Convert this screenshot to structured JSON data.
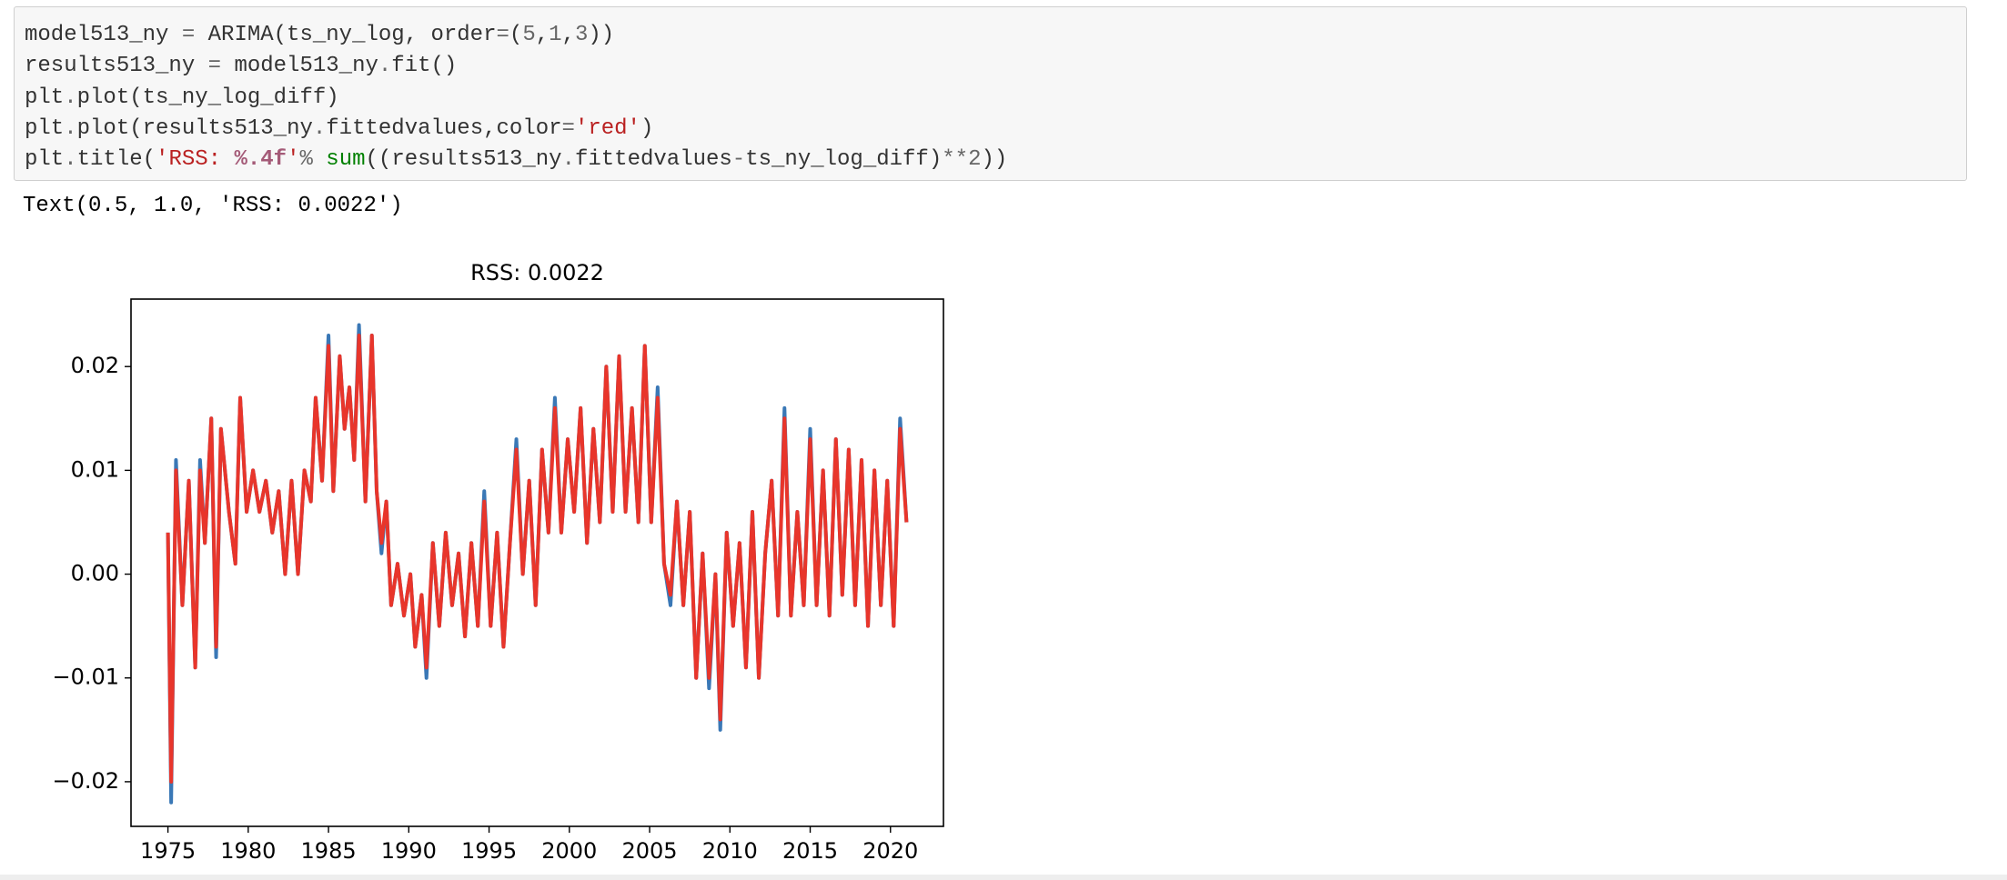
{
  "code": {
    "lines": [
      [
        {
          "text": "model513_ny ",
          "color": "#333333"
        },
        {
          "text": "=",
          "color": "#666666"
        },
        {
          "text": " ARIMA(ts_ny_log, order",
          "color": "#333333"
        },
        {
          "text": "=",
          "color": "#666666"
        },
        {
          "text": "(",
          "color": "#333333"
        },
        {
          "text": "5",
          "color": "#666666"
        },
        {
          "text": ",",
          "color": "#333333"
        },
        {
          "text": "1",
          "color": "#666666"
        },
        {
          "text": ",",
          "color": "#333333"
        },
        {
          "text": "3",
          "color": "#666666"
        },
        {
          "text": "))",
          "color": "#333333"
        }
      ],
      [
        {
          "text": "results513_ny ",
          "color": "#333333"
        },
        {
          "text": "=",
          "color": "#666666"
        },
        {
          "text": " model513_ny",
          "color": "#333333"
        },
        {
          "text": ".",
          "color": "#666666"
        },
        {
          "text": "fit()",
          "color": "#333333"
        }
      ],
      [
        {
          "text": "plt",
          "color": "#333333"
        },
        {
          "text": ".",
          "color": "#666666"
        },
        {
          "text": "plot(ts_ny_log_diff)",
          "color": "#333333"
        }
      ],
      [
        {
          "text": "plt",
          "color": "#333333"
        },
        {
          "text": ".",
          "color": "#666666"
        },
        {
          "text": "plot(results513_ny",
          "color": "#333333"
        },
        {
          "text": ".",
          "color": "#666666"
        },
        {
          "text": "fittedvalues,color",
          "color": "#333333"
        },
        {
          "text": "=",
          "color": "#666666"
        },
        {
          "text": "'red'",
          "color": "#ba2121"
        },
        {
          "text": ")",
          "color": "#333333"
        }
      ],
      [
        {
          "text": "plt",
          "color": "#333333"
        },
        {
          "text": ".",
          "color": "#666666"
        },
        {
          "text": "title(",
          "color": "#333333"
        },
        {
          "text": "'RSS: ",
          "color": "#ba2121"
        },
        {
          "text": "%.4f",
          "color": "#a45a77",
          "weight": "bold"
        },
        {
          "text": "'",
          "color": "#ba2121"
        },
        {
          "text": "%",
          "color": "#666666"
        },
        {
          "text": " ",
          "color": "#333333"
        },
        {
          "text": "sum",
          "color": "#008000"
        },
        {
          "text": "((results513_ny",
          "color": "#333333"
        },
        {
          "text": ".",
          "color": "#666666"
        },
        {
          "text": "fittedvalues",
          "color": "#333333"
        },
        {
          "text": "-",
          "color": "#666666"
        },
        {
          "text": "ts_ny_log_diff)",
          "color": "#333333"
        },
        {
          "text": "**",
          "color": "#666666"
        },
        {
          "text": "2",
          "color": "#666666"
        },
        {
          "text": "))",
          "color": "#333333"
        }
      ]
    ]
  },
  "output": {
    "text": "Text(0.5, 1.0, 'RSS: 0.0022')"
  },
  "chart_data": {
    "type": "line",
    "title": "RSS: 0.0022",
    "x": [
      1975.0,
      1975.2,
      1975.5,
      1975.9,
      1976.3,
      1976.7,
      1977.0,
      1977.3,
      1977.7,
      1978.0,
      1978.3,
      1978.8,
      1979.2,
      1979.5,
      1979.9,
      1980.3,
      1980.7,
      1981.1,
      1981.5,
      1981.9,
      1982.3,
      1982.7,
      1983.1,
      1983.5,
      1983.9,
      1984.2,
      1984.6,
      1985.0,
      1985.3,
      1985.7,
      1986.0,
      1986.3,
      1986.6,
      1986.9,
      1987.3,
      1987.7,
      1988.0,
      1988.3,
      1988.6,
      1988.9,
      1989.3,
      1989.7,
      1990.1,
      1990.4,
      1990.8,
      1991.1,
      1991.5,
      1991.9,
      1992.3,
      1992.7,
      1993.1,
      1993.5,
      1993.9,
      1994.3,
      1994.7,
      1995.1,
      1995.5,
      1995.9,
      1996.3,
      1996.7,
      1997.1,
      1997.5,
      1997.9,
      1998.3,
      1998.7,
      1999.1,
      1999.5,
      1999.9,
      2000.3,
      2000.7,
      2001.1,
      2001.5,
      2001.9,
      2002.3,
      2002.7,
      2003.1,
      2003.5,
      2003.9,
      2004.3,
      2004.7,
      2005.1,
      2005.5,
      2005.9,
      2006.3,
      2006.7,
      2007.1,
      2007.5,
      2007.9,
      2008.3,
      2008.7,
      2009.1,
      2009.4,
      2009.8,
      2010.2,
      2010.6,
      2011.0,
      2011.4,
      2011.8,
      2012.2,
      2012.6,
      2013.0,
      2013.4,
      2013.8,
      2014.2,
      2014.6,
      2015.0,
      2015.4,
      2015.8,
      2016.2,
      2016.6,
      2017.0,
      2017.4,
      2017.8,
      2018.2,
      2018.6,
      2019.0,
      2019.4,
      2019.8,
      2020.2,
      2020.6,
      2021.0
    ],
    "series": [
      {
        "color": "#3a78b6",
        "values": [
          0.004,
          -0.022,
          0.011,
          -0.003,
          0.009,
          -0.009,
          0.011,
          0.003,
          0.015,
          -0.008,
          0.014,
          0.006,
          0.001,
          0.017,
          0.006,
          0.01,
          0.006,
          0.009,
          0.004,
          0.008,
          0.0,
          0.009,
          0.0,
          0.01,
          0.007,
          0.017,
          0.009,
          0.023,
          0.008,
          0.021,
          0.014,
          0.018,
          0.011,
          0.024,
          0.007,
          0.023,
          0.008,
          0.002,
          0.007,
          -0.003,
          0.001,
          -0.004,
          0.0,
          -0.007,
          -0.002,
          -0.01,
          0.003,
          -0.005,
          0.004,
          -0.003,
          0.002,
          -0.006,
          0.003,
          -0.005,
          0.008,
          -0.005,
          0.004,
          -0.007,
          0.003,
          0.013,
          0.0,
          0.009,
          -0.003,
          0.012,
          0.004,
          0.017,
          0.004,
          0.013,
          0.006,
          0.016,
          0.003,
          0.014,
          0.005,
          0.02,
          0.006,
          0.021,
          0.006,
          0.016,
          0.005,
          0.022,
          0.005,
          0.018,
          0.001,
          -0.003,
          0.007,
          -0.003,
          0.006,
          -0.01,
          0.002,
          -0.011,
          0.0,
          -0.015,
          0.004,
          -0.005,
          0.003,
          -0.009,
          0.006,
          -0.01,
          0.002,
          0.009,
          -0.004,
          0.016,
          -0.004,
          0.006,
          -0.003,
          0.014,
          -0.003,
          0.01,
          -0.004,
          0.013,
          -0.002,
          0.012,
          -0.003,
          0.011,
          -0.005,
          0.01,
          -0.003,
          0.009,
          -0.005,
          0.015,
          0.005
        ]
      },
      {
        "color": "#e8352b",
        "values": [
          0.004,
          -0.02,
          0.01,
          -0.003,
          0.009,
          -0.009,
          0.01,
          0.003,
          0.015,
          -0.007,
          0.014,
          0.006,
          0.001,
          0.017,
          0.006,
          0.01,
          0.006,
          0.009,
          0.004,
          0.008,
          0.0,
          0.009,
          0.0,
          0.01,
          0.007,
          0.017,
          0.009,
          0.022,
          0.008,
          0.021,
          0.014,
          0.018,
          0.011,
          0.023,
          0.007,
          0.023,
          0.008,
          0.003,
          0.007,
          -0.003,
          0.001,
          -0.004,
          0.0,
          -0.007,
          -0.002,
          -0.009,
          0.003,
          -0.005,
          0.004,
          -0.003,
          0.002,
          -0.006,
          0.003,
          -0.005,
          0.007,
          -0.005,
          0.004,
          -0.007,
          0.003,
          0.012,
          0.0,
          0.009,
          -0.003,
          0.012,
          0.004,
          0.016,
          0.004,
          0.013,
          0.006,
          0.016,
          0.003,
          0.014,
          0.005,
          0.02,
          0.006,
          0.021,
          0.006,
          0.016,
          0.005,
          0.022,
          0.005,
          0.017,
          0.001,
          -0.002,
          0.007,
          -0.003,
          0.006,
          -0.01,
          0.002,
          -0.01,
          0.0,
          -0.014,
          0.004,
          -0.005,
          0.003,
          -0.009,
          0.006,
          -0.01,
          0.002,
          0.009,
          -0.004,
          0.015,
          -0.004,
          0.006,
          -0.003,
          0.013,
          -0.003,
          0.01,
          -0.004,
          0.013,
          -0.002,
          0.012,
          -0.003,
          0.011,
          -0.005,
          0.01,
          -0.003,
          0.009,
          -0.005,
          0.014,
          0.005
        ]
      }
    ],
    "xlim": [
      1972.7,
      2023.3
    ],
    "ylim": [
      -0.0243,
      0.0265
    ],
    "xticks": [
      1975,
      1980,
      1985,
      1990,
      1995,
      2000,
      2005,
      2010,
      2015,
      2020
    ],
    "yticks": [
      {
        "value": -0.02,
        "label": "−0.02"
      },
      {
        "value": -0.01,
        "label": "−0.01"
      },
      {
        "value": 0,
        "label": "0.00"
      },
      0.01,
      0.02
    ],
    "grid": false
  }
}
